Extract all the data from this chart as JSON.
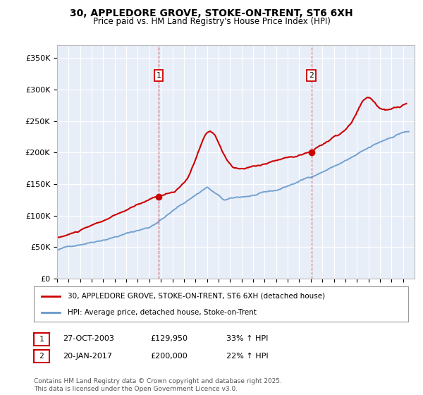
{
  "title": "30, APPLEDORE GROVE, STOKE-ON-TRENT, ST6 6XH",
  "subtitle": "Price paid vs. HM Land Registry's House Price Index (HPI)",
  "ylim": [
    0,
    370000
  ],
  "yticks": [
    0,
    50000,
    100000,
    150000,
    200000,
    250000,
    300000,
    350000
  ],
  "ytick_labels": [
    "£0",
    "£50K",
    "£100K",
    "£150K",
    "£200K",
    "£250K",
    "£300K",
    "£350K"
  ],
  "x_start_year": 1995,
  "x_end_year": 2026,
  "sale1_date_num": 2003.82,
  "sale1_price": 129950,
  "sale1_label": "1",
  "sale2_date_num": 2017.05,
  "sale2_price": 200000,
  "sale2_label": "2",
  "house_color": "#cc0000",
  "hpi_color": "#6699cc",
  "background_color": "#e8eef8",
  "grid_color": "#ffffff",
  "legend_house": "30, APPLEDORE GROVE, STOKE-ON-TRENT, ST6 6XH (detached house)",
  "legend_hpi": "HPI: Average price, detached house, Stoke-on-Trent",
  "annotation1": [
    "1",
    "27-OCT-2003",
    "£129,950",
    "33% ↑ HPI"
  ],
  "annotation2": [
    "2",
    "20-JAN-2017",
    "£200,000",
    "22% ↑ HPI"
  ],
  "footer": "Contains HM Land Registry data © Crown copyright and database right 2025.\nThis data is licensed under the Open Government Licence v3.0."
}
